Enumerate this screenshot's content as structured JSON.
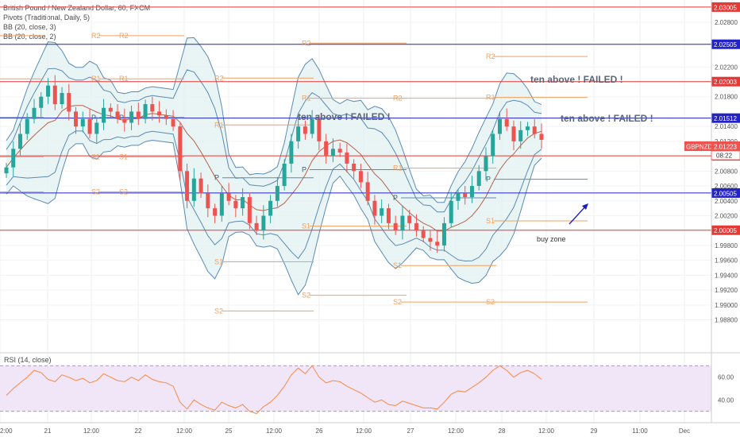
{
  "header": {
    "title": "British Pound / New Zealand Dollar, 60, FXCM",
    "indicators": [
      "Pivots (Traditional, Daily, 5)",
      "BB (20, close, 3)",
      "BB (20, close, 2)"
    ],
    "rsi_label": "RSI (14, close)"
  },
  "annotations": {
    "failed_1": "ten above ! FAILED !",
    "failed_2": "ten above ! FAILED !",
    "failed_3": "ten above ! FAILED !",
    "buy_zone": "buy zone"
  },
  "price_tag": {
    "symbol": "GBPNZD",
    "value": "2.01223",
    "countdown": "08:22"
  },
  "colors": {
    "up": "#26a69a",
    "down": "#ef5350",
    "pivot": "#f0a060",
    "red_line": "#e53935",
    "blue_line": "#2323c8",
    "bb": "#5b8bb0",
    "bb_fill": "#e3f1f3",
    "ma": "#b5654f",
    "rsi": "#f58a45",
    "rsi_bg": "#f0e6f8"
  },
  "chart_data": {
    "type": "candlestick",
    "price_axis": {
      "min": 1.984,
      "max": 2.031,
      "ticks": [
        "2.03005",
        "2.02800",
        "2.02505",
        "2.02200",
        "2.02003",
        "2.01800",
        "2.01512",
        "2.01400",
        "2.01200",
        "2.01005",
        "2.00800",
        "2.00600",
        "2.00505",
        "2.00400",
        "2.00200",
        "2.00005",
        "1.99800",
        "1.99600",
        "1.99400",
        "1.99200",
        "1.99000",
        "1.98800"
      ]
    },
    "time_axis": {
      "labels": [
        "2:00",
        "21",
        "12:00",
        "22",
        "12:00",
        "25",
        "12:00",
        "26",
        "12:00",
        "27",
        "12:00",
        "28",
        "12:00",
        "29",
        "11:00",
        "Dec"
      ]
    },
    "horizontal_levels": [
      {
        "price": 2.03005,
        "label": "2.03005",
        "color": "red"
      },
      {
        "price": 2.02505,
        "label": "2.02505",
        "color": "blue"
      },
      {
        "price": 2.02003,
        "label": "2.02003",
        "color": "red"
      },
      {
        "price": 2.01512,
        "label": "2.01512",
        "color": "blue"
      },
      {
        "price": 2.01005,
        "label": "2.01005",
        "color": "red"
      },
      {
        "price": 2.00505,
        "label": "2.00505",
        "color": "blue"
      },
      {
        "price": 2.00005,
        "label": "2.00005",
        "color": "red"
      }
    ],
    "pivots": [
      {
        "day": 21,
        "R2": 2.0262,
        "R1": 2.0204,
        "P": 2.0152,
        "S1": 2.0099,
        "S2": 2.0052
      },
      {
        "day": 22,
        "R2": 2.0262,
        "R1": 2.0204,
        "P": 2.0152,
        "S1": 2.0099,
        "S2": 2.0052
      },
      {
        "day": 25,
        "R2": 2.0205,
        "R1": 2.0142,
        "P": 2.0071,
        "S1": 1.9958,
        "S2": 1.9892
      },
      {
        "day": 26,
        "R2": 2.0252,
        "R1": 2.0178,
        "P": 2.0082,
        "S1": 2.0006,
        "S2": 1.9913
      },
      {
        "day": 27,
        "R2": 2.0178,
        "R1": 2.0084,
        "P": 2.0044,
        "S1": 1.9953,
        "S2": 1.9904
      },
      {
        "day": 28,
        "R2": 2.0234,
        "R1": 2.0179,
        "P": 2.0069,
        "S1": 2.0013,
        "S2": 1.9904
      }
    ],
    "close_series": [
      2.0085,
      2.011,
      2.013,
      2.015,
      2.0165,
      2.018,
      2.0195,
      2.017,
      2.0185,
      2.016,
      2.014,
      2.015,
      2.013,
      2.0145,
      2.0165,
      2.016,
      2.015,
      2.0145,
      2.016,
      2.015,
      2.017,
      2.016,
      2.0155,
      2.015,
      2.014,
      2.008,
      2.004,
      2.007,
      2.005,
      2.003,
      2.002,
      2.005,
      2.004,
      2.003,
      2.0045,
      2.001,
      2.0,
      2.002,
      2.004,
      2.006,
      2.009,
      2.012,
      2.014,
      2.013,
      2.015,
      2.012,
      2.01,
      2.011,
      2.0105,
      2.009,
      2.008,
      2.0065,
      2.004,
      2.002,
      2.003,
      2.001,
      2.0,
      2.002,
      2.001,
      2.0,
      1.999,
      1.9985,
      1.998,
      2.001,
      2.004,
      2.005,
      2.0045,
      2.006,
      2.008,
      2.01,
      2.013,
      2.015,
      2.014,
      2.012,
      2.0135,
      2.014,
      2.013,
      2.0122
    ],
    "rsi": {
      "ticks": [
        "60.00",
        "40.00"
      ],
      "range": [
        20,
        80
      ],
      "values": [
        44,
        50,
        55,
        60,
        66,
        64,
        58,
        56,
        62,
        60,
        57,
        59,
        55,
        57,
        63,
        60,
        57,
        56,
        60,
        57,
        62,
        58,
        56,
        55,
        52,
        38,
        32,
        40,
        36,
        33,
        31,
        38,
        35,
        33,
        36,
        30,
        28,
        34,
        38,
        44,
        52,
        62,
        68,
        63,
        70,
        60,
        55,
        57,
        56,
        52,
        49,
        46,
        42,
        38,
        40,
        36,
        35,
        39,
        37,
        35,
        33,
        33,
        32,
        38,
        45,
        48,
        47,
        51,
        55,
        60,
        66,
        70,
        66,
        60,
        64,
        66,
        63,
        58
      ]
    }
  }
}
